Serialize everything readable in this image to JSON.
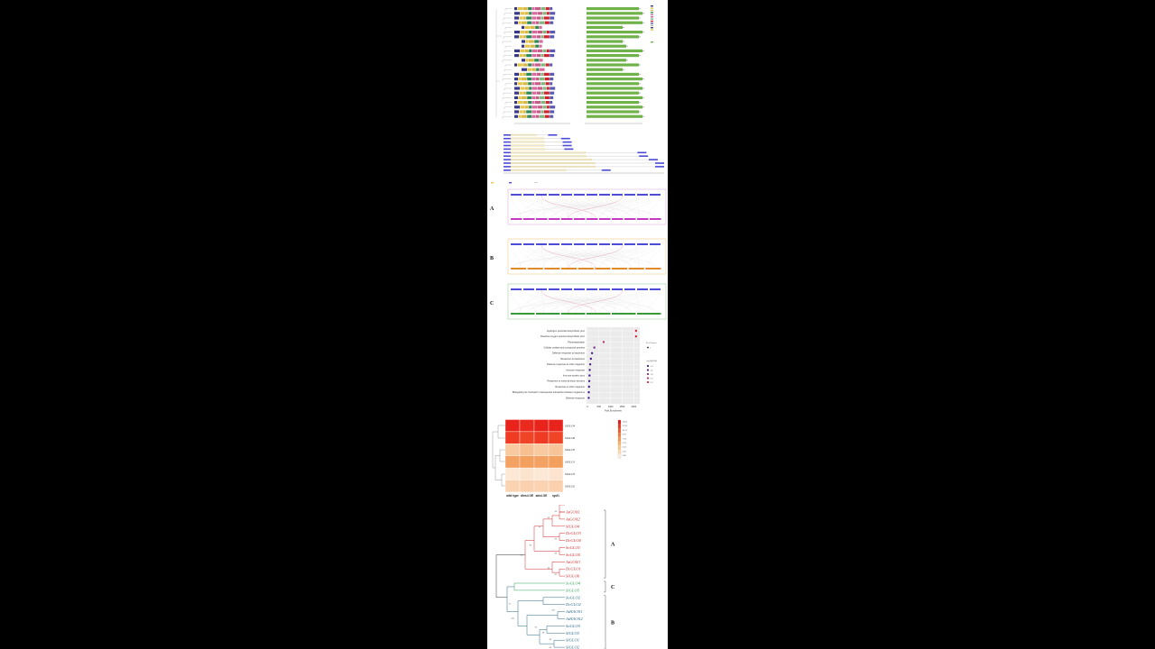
{
  "synteny": {
    "panels": [
      "A",
      "B",
      "C"
    ],
    "colors": {
      "ref": "#4b4bd6",
      "a": "#c23bc2",
      "b": "#e08a2b",
      "c": "#3a9a3a",
      "link": "#d97aa0"
    }
  },
  "go": {
    "terms": [
      "Hydrogen peroxide biosynthetic proc",
      "Reactive oxygen species biosynthetic proc",
      "Photorespiration",
      "Cellular oxidant and compound process",
      "Defense response to bacterium",
      "Response to bacterium",
      "Defense response to other organism",
      "Immune response",
      "Immune system proc",
      "Response to external biotic stimulus",
      "Response to other organism",
      "Biological proc involved in interspecies interaction between organisms",
      "Defense response"
    ],
    "x_axis_title": "Fold Enrichment",
    "x_ticks": [
      "0",
      "500",
      "1000",
      "1500",
      "2000"
    ],
    "size_legend_title": "N. of Genes",
    "size_legend_value": "1",
    "color_legend_title": "-log10(FDR)",
    "color_legend_values": [
      "1.4",
      "1.6",
      "1.8",
      "2.0",
      "2.2"
    ]
  },
  "heatmap": {
    "rows": [
      "SlGLO4",
      "SlGLO6",
      "SlGLO5",
      "SlGLO1",
      "SlGLO3",
      "SlGLO2"
    ],
    "columns": [
      "wild type",
      "dhrs4 OE",
      "ads4 OE",
      "rgsf1"
    ],
    "scale_labels": [
      "14.00",
      "12.36",
      "10.71",
      "9.07",
      "7.43",
      "5.79",
      "4.14",
      "2.50",
      "0.86"
    ]
  },
  "tree": {
    "panel_labels": [
      "A",
      "C",
      "B"
    ],
    "leaves": [
      {
        "name": "AtGOX1",
        "color": "#d12a2a"
      },
      {
        "name": "AtGOX2",
        "color": "#d12a2a"
      },
      {
        "name": "SlGLO4",
        "color": "#d12a2a"
      },
      {
        "name": "DcGLO3",
        "color": "#d12a2a"
      },
      {
        "name": "DcGLO4",
        "color": "#d12a2a"
      },
      {
        "name": "SoGLO1",
        "color": "#d12a2a"
      },
      {
        "name": "SoGLO5",
        "color": "#d12a2a"
      },
      {
        "name": "AtGOX3",
        "color": "#d12a2a"
      },
      {
        "name": "DcGLO1",
        "color": "#d12a2a"
      },
      {
        "name": "SlGLO6",
        "color": "#d12a2a"
      },
      {
        "name": "SoGLO4",
        "color": "#2ea35a"
      },
      {
        "name": "SlGLO5",
        "color": "#2ea35a"
      },
      {
        "name": "SoGLO2",
        "color": "#2a6a8a"
      },
      {
        "name": "DcGLO2",
        "color": "#2a6a8a"
      },
      {
        "name": "AtHAOX1",
        "color": "#2a6a8a"
      },
      {
        "name": "AtHAOX2",
        "color": "#2a6a8a"
      },
      {
        "name": "SoGLO3",
        "color": "#2a6a8a"
      },
      {
        "name": "SlGLO3",
        "color": "#2a6a8a"
      },
      {
        "name": "SlGLO1",
        "color": "#2a6a8a"
      },
      {
        "name": "SlGLO2",
        "color": "#2a6a8a"
      }
    ],
    "bootstraps": [
      "99",
      "99",
      "93",
      "98",
      "96",
      "99",
      "96",
      "82",
      "98",
      "72",
      "100",
      "100",
      "55",
      "49",
      "99",
      "96"
    ]
  }
}
